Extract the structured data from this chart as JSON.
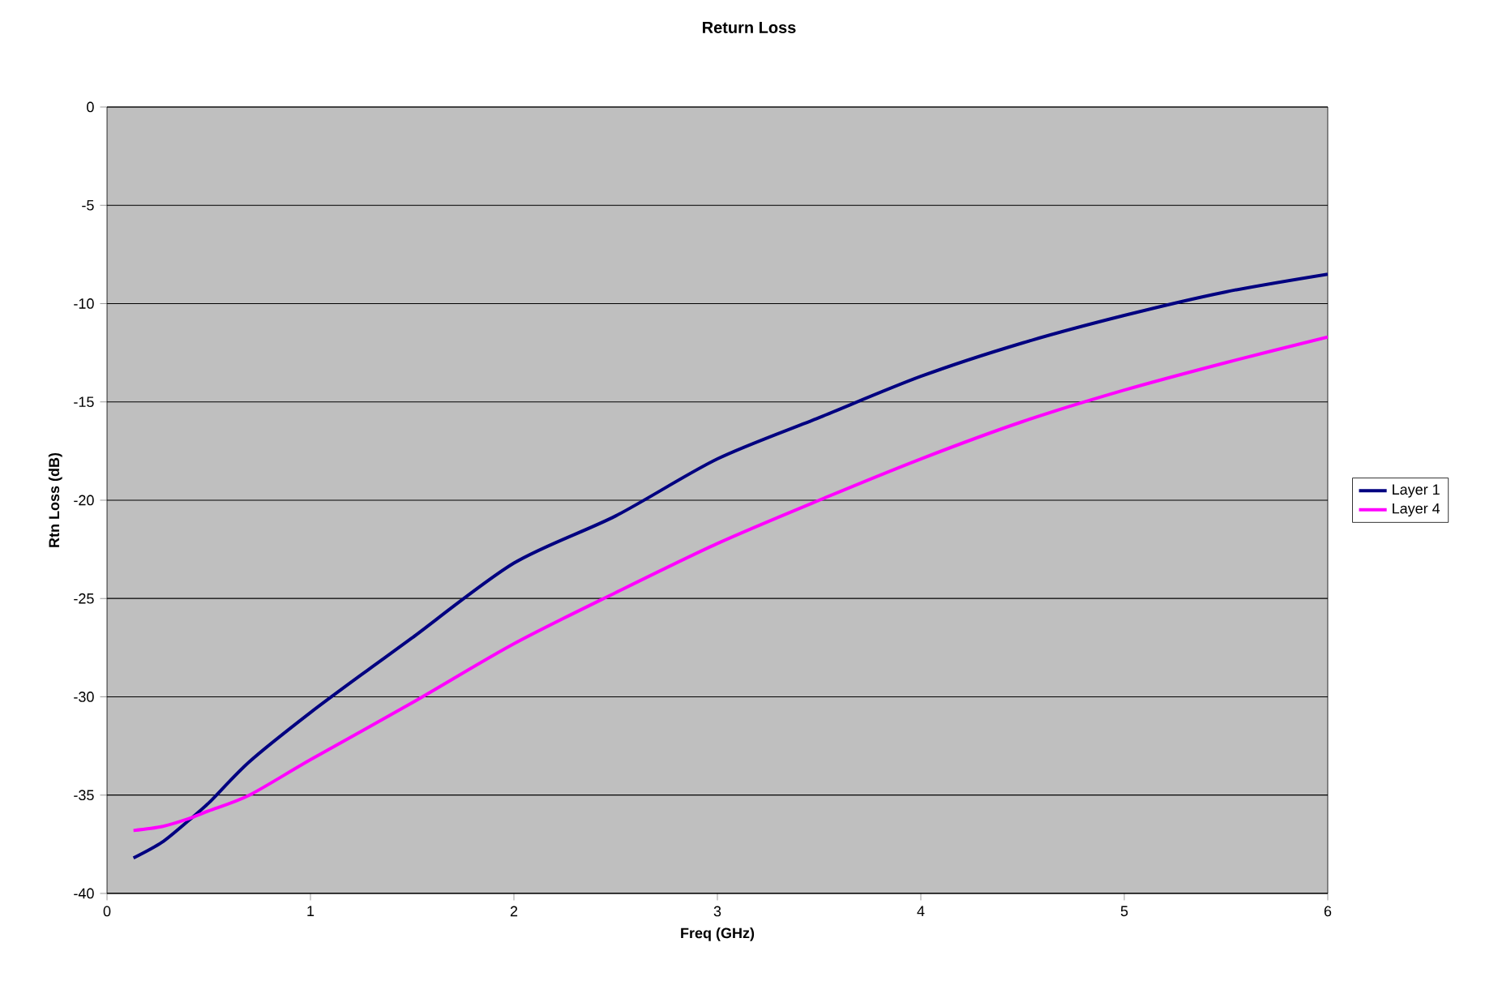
{
  "chart_data": {
    "type": "line",
    "title": "Return Loss",
    "xlabel": "Freq (GHz)",
    "ylabel": "Rtn Loss (dB)",
    "xlim": [
      0,
      6
    ],
    "ylim": [
      -40,
      0
    ],
    "xticks": [
      0,
      1,
      2,
      3,
      4,
      5,
      6
    ],
    "yticks": [
      -40,
      -35,
      -30,
      -25,
      -20,
      -15,
      -10,
      -5,
      0
    ],
    "grid": "y",
    "legend": "right",
    "marker": "none",
    "line_style": "solid",
    "series": [
      {
        "name": "Layer 1",
        "color": "#000080",
        "x": [
          0.13,
          0.27,
          0.4,
          0.5,
          0.7,
          1.0,
          1.3,
          1.5,
          2.0,
          2.5,
          3.0,
          3.5,
          4.0,
          4.5,
          5.0,
          5.5,
          6.0
        ],
        "values": [
          -38.2,
          -37.4,
          -36.3,
          -35.4,
          -33.3,
          -30.8,
          -28.5,
          -27.0,
          -23.2,
          -20.8,
          -17.9,
          -15.8,
          -13.7,
          -12.0,
          -10.6,
          -9.4,
          -8.5
        ]
      },
      {
        "name": "Layer 4",
        "color": "#ff00ff",
        "x": [
          0.13,
          0.27,
          0.4,
          0.5,
          0.7,
          1.0,
          1.5,
          2.0,
          2.5,
          3.0,
          3.5,
          4.0,
          4.5,
          5.0,
          5.5,
          6.0
        ],
        "values": [
          -36.8,
          -36.6,
          -36.2,
          -35.8,
          -35.0,
          -33.2,
          -30.3,
          -27.3,
          -24.7,
          -22.2,
          -20.0,
          -17.9,
          -16.0,
          -14.4,
          -13.0,
          -11.7
        ]
      }
    ]
  }
}
